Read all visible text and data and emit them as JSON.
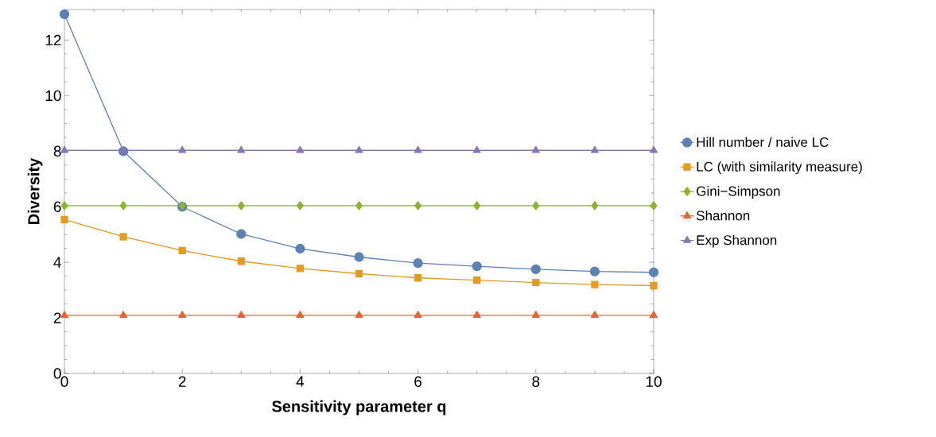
{
  "chart_data": {
    "type": "line",
    "xlabel": "Sensitivity parameter q",
    "ylabel": "Diversity",
    "x": [
      0,
      1,
      2,
      3,
      4,
      5,
      6,
      7,
      8,
      9,
      10
    ],
    "xlim": [
      0,
      10
    ],
    "ylim": [
      0,
      13.1
    ],
    "xticks": [
      0,
      2,
      4,
      6,
      8,
      10
    ],
    "yticks": [
      0,
      2,
      4,
      6,
      8,
      10,
      12
    ],
    "grid": false,
    "legend": "right",
    "line_style": "solid",
    "series": [
      {
        "name": "Hill number / naive LC",
        "color": "#5e81b5",
        "marker": "circle",
        "values": [
          12.93,
          8.0,
          6.0,
          5.02,
          4.49,
          4.19,
          3.97,
          3.86,
          3.75,
          3.67,
          3.64
        ]
      },
      {
        "name": "LC (with similarity measure)",
        "color": "#e19c24",
        "marker": "square",
        "values": [
          5.54,
          4.92,
          4.42,
          4.04,
          3.78,
          3.59,
          3.44,
          3.36,
          3.27,
          3.2,
          3.16
        ]
      },
      {
        "name": "Gini−Simpson",
        "color": "#8fb032",
        "marker": "diamond",
        "values": [
          6.04,
          6.04,
          6.04,
          6.04,
          6.04,
          6.04,
          6.04,
          6.04,
          6.04,
          6.04,
          6.04
        ]
      },
      {
        "name": "Shannon",
        "color": "#eb6235",
        "marker": "triangle",
        "values": [
          2.09,
          2.09,
          2.09,
          2.09,
          2.09,
          2.09,
          2.09,
          2.09,
          2.09,
          2.09,
          2.09
        ]
      },
      {
        "name": "Exp Shannon",
        "color": "#8778b3",
        "marker": "triangle",
        "values": [
          8.03,
          8.03,
          8.03,
          8.03,
          8.03,
          8.03,
          8.03,
          8.03,
          8.03,
          8.03,
          8.03
        ]
      }
    ]
  }
}
